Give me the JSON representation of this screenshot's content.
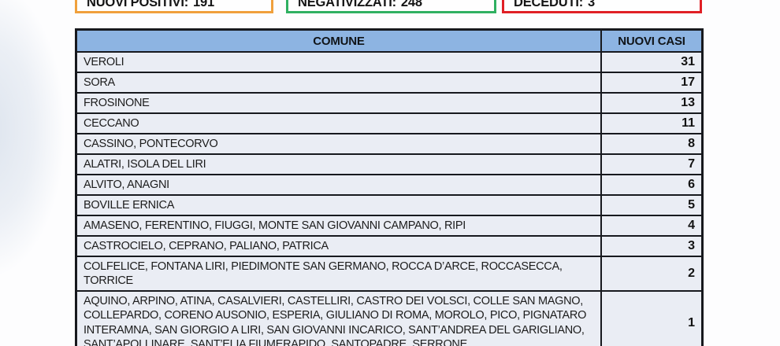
{
  "theme": {
    "accent_orange": "#f0a03c",
    "accent_green": "#2fb061",
    "accent_red": "#e01f25",
    "header_blue": "#8db4e2",
    "row_bg": "#eaedf4",
    "border_dark": "#17191e",
    "page_tint": "#dde4ee"
  },
  "stats": [
    {
      "label": "NUOVI POSITIVI:",
      "value": "191"
    },
    {
      "label": "NEGATIVIZZATI:",
      "value": "248"
    },
    {
      "label": "DECEDUTI:",
      "value": "3"
    }
  ],
  "table": {
    "headers": {
      "comune": "COMUNE",
      "nuovi_casi": "NUOVI CASI"
    },
    "rows": [
      {
        "comune": "VEROLI",
        "value": "31"
      },
      {
        "comune": "SORA",
        "value": "17"
      },
      {
        "comune": "FROSINONE",
        "value": "13"
      },
      {
        "comune": "CECCANO",
        "value": "11"
      },
      {
        "comune": "CASSINO, PONTECORVO",
        "value": "8"
      },
      {
        "comune": "ALATRI, ISOLA DEL LIRI",
        "value": "7"
      },
      {
        "comune": "ALVITO, ANAGNI",
        "value": "6"
      },
      {
        "comune": "BOVILLE ERNICA",
        "value": "5"
      },
      {
        "comune": "AMASENO, FERENTINO, FIUGGI, MONTE SAN GIOVANNI CAMPANO, RIPI",
        "value": "4"
      },
      {
        "comune": "CASTROCIELO, CEPRANO, PALIANO, PATRICA",
        "value": "3"
      },
      {
        "comune": "COLFELICE, FONTANA LIRI, PIEDIMONTE SAN GERMANO, ROCCA D’ARCE, ROCCASECCA, TORRICE",
        "value": "2"
      },
      {
        "comune": "AQUINO, ARPINO, ATINA, CASALVIERI, CASTELLIRI, CASTRO DEI VOLSCI, COLLE SAN MAGNO, COLLEPARDO, CORENO AUSONIO, ESPERIA, GIULIANO DI ROMA, MOROLO, PICO, PIGNATARO INTERAMNA, SAN GIORGIO A LIRI, SAN GIOVANNI INCARICO, SANT’ANDREA DEL GARIGLIANO, SANT’APOLLINARE, SANT’ELIA FIUMERAPIDO, SANTOPADRE, SERRONE",
        "value": "1"
      }
    ]
  }
}
